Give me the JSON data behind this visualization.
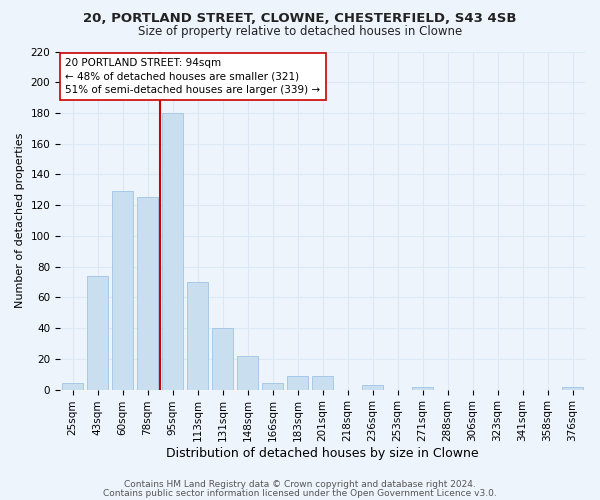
{
  "title1": "20, PORTLAND STREET, CLOWNE, CHESTERFIELD, S43 4SB",
  "title2": "Size of property relative to detached houses in Clowne",
  "xlabel": "Distribution of detached houses by size in Clowne",
  "ylabel": "Number of detached properties",
  "bar_labels": [
    "25sqm",
    "43sqm",
    "60sqm",
    "78sqm",
    "95sqm",
    "113sqm",
    "131sqm",
    "148sqm",
    "166sqm",
    "183sqm",
    "201sqm",
    "218sqm",
    "236sqm",
    "253sqm",
    "271sqm",
    "288sqm",
    "306sqm",
    "323sqm",
    "341sqm",
    "358sqm",
    "376sqm"
  ],
  "bar_values": [
    4,
    74,
    129,
    125,
    180,
    70,
    40,
    22,
    4,
    9,
    9,
    0,
    3,
    0,
    2,
    0,
    0,
    0,
    0,
    0,
    2
  ],
  "bar_color": "#c9dff0",
  "bar_edgecolor": "#a8c8e8",
  "property_line_color": "#cc0000",
  "annotation_line1": "20 PORTLAND STREET: 94sqm",
  "annotation_line2": "← 48% of detached houses are smaller (321)",
  "annotation_line3": "51% of semi-detached houses are larger (339) →",
  "annotation_box_edgecolor": "#cc0000",
  "annotation_box_facecolor": "white",
  "ylim": [
    0,
    220
  ],
  "yticks": [
    0,
    20,
    40,
    60,
    80,
    100,
    120,
    140,
    160,
    180,
    200,
    220
  ],
  "footer1": "Contains HM Land Registry data © Crown copyright and database right 2024.",
  "footer2": "Contains public sector information licensed under the Open Government Licence v3.0.",
  "grid_color": "#dce9f5",
  "bg_color": "#eef4fb",
  "title1_fontsize": 9.5,
  "title2_fontsize": 8.5,
  "xlabel_fontsize": 9,
  "ylabel_fontsize": 8,
  "tick_fontsize": 7.5,
  "annotation_fontsize": 7.5,
  "footer_fontsize": 6.5
}
